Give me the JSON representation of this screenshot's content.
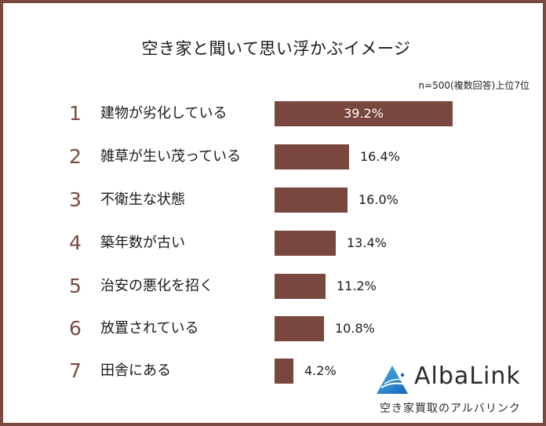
{
  "header": {
    "title": "空き家と聞いて思い浮かぶイメージ",
    "note": "n=500(複数回答)上位7位"
  },
  "colors": {
    "bar": "#7a473e",
    "rank": "#7a4a40",
    "border": "#7a4a40"
  },
  "rows": [
    {
      "rank": "1",
      "label": "建物が劣化している",
      "value_label": "39.2%"
    },
    {
      "rank": "2",
      "label": "雑草が生い茂っている",
      "value_label": "16.4%"
    },
    {
      "rank": "3",
      "label": "不衛生な状態",
      "value_label": "16.0%"
    },
    {
      "rank": "4",
      "label": "築年数が古い",
      "value_label": "13.4%"
    },
    {
      "rank": "5",
      "label": "治安の悪化を招く",
      "value_label": "11.2%"
    },
    {
      "rank": "6",
      "label": "放置されている",
      "value_label": "10.8%"
    },
    {
      "rank": "7",
      "label": "田舎にある",
      "value_label": "4.2%"
    }
  ],
  "logo": {
    "name": "AlbaLink",
    "tagline": "空き家買取のアルバリンク"
  },
  "chart_data": {
    "type": "bar",
    "orientation": "horizontal",
    "title": "空き家と聞いて思い浮かぶイメージ",
    "subtitle": "n=500(複数回答)上位7位",
    "categories": [
      "建物が劣化している",
      "雑草が生い茂っている",
      "不衛生な状態",
      "築年数が古い",
      "治安の悪化を招く",
      "放置されている",
      "田舎にある"
    ],
    "values": [
      39.2,
      16.4,
      16.0,
      13.4,
      11.2,
      10.8,
      4.2
    ],
    "unit": "%",
    "xlabel": "",
    "ylabel": "",
    "grid": false,
    "legend": null
  }
}
